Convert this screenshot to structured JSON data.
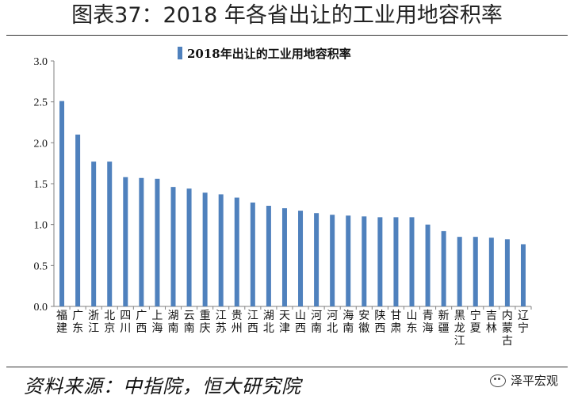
{
  "figure": {
    "title": "图表37：2018 年各省出让的工业用地容积率",
    "source": "资料来源：中指院，恒大研究院",
    "watermark": "泽平宏观"
  },
  "colors": {
    "bar": "#4f81bd",
    "axis": "#808080",
    "text": "#111111"
  },
  "chart_data": {
    "type": "bar",
    "legend": "2018年出让的工业用地容积率",
    "legend_position": "top-center",
    "grid": false,
    "ylim": [
      0,
      3.0
    ],
    "yticks": [
      "0.0",
      "0.5",
      "1.0",
      "1.5",
      "2.0",
      "2.5",
      "3.0"
    ],
    "categories": [
      "福建",
      "广东",
      "浙江",
      "北京",
      "四川",
      "广西",
      "上海",
      "湖南",
      "云南",
      "重庆",
      "江苏",
      "贵州",
      "江西",
      "湖北",
      "天津",
      "山西",
      "河南",
      "河北",
      "海南",
      "安徽",
      "陕西",
      "甘肃",
      "山东",
      "青海",
      "新疆",
      "黑龙江",
      "宁夏",
      "吉林",
      "内蒙古",
      "辽宁"
    ],
    "values": [
      2.51,
      2.1,
      1.77,
      1.77,
      1.58,
      1.57,
      1.56,
      1.46,
      1.44,
      1.39,
      1.37,
      1.33,
      1.27,
      1.23,
      1.2,
      1.17,
      1.14,
      1.12,
      1.11,
      1.1,
      1.09,
      1.09,
      1.09,
      1.0,
      0.92,
      0.85,
      0.85,
      0.84,
      0.82,
      0.76
    ]
  }
}
